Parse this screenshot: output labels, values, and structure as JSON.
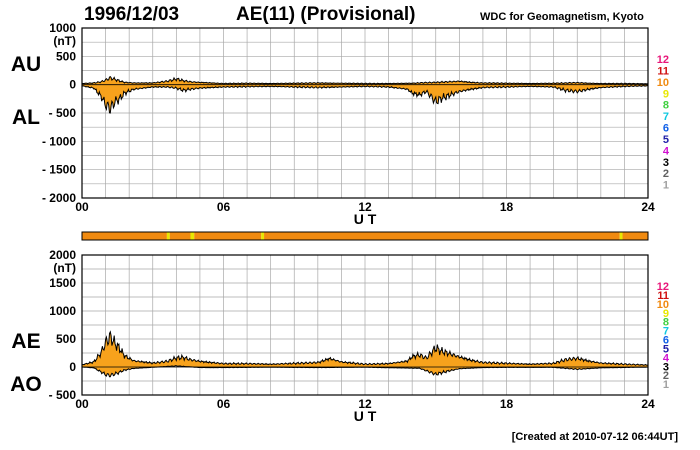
{
  "header": {
    "date": "1996/12/03",
    "title": "AE(11) (Provisional)",
    "credit": "WDC for Geomagnetism, Kyoto"
  },
  "footer": {
    "created": "[Created at 2010-07-12 06:44UT]"
  },
  "colors": {
    "fill": "#f7a21c",
    "grid": "#a8a8a8",
    "station_count_scale": [
      "#e8177a",
      "#d01010",
      "#f08a10",
      "#e8e800",
      "#40d040",
      "#10c8e0",
      "#1060e8",
      "#2020a8",
      "#d010d0",
      "#000000",
      "#606060",
      "#a0a0a0"
    ]
  },
  "station_count_labels": [
    "12",
    "11",
    "10",
    "9",
    "8",
    "7",
    "6",
    "5",
    "4",
    "3",
    "2",
    "1"
  ],
  "chart_data": [
    {
      "type": "area",
      "xlabel": "U T",
      "ylabel": "(nT)",
      "xlim": [
        0,
        24
      ],
      "ylim": [
        -2000,
        1000
      ],
      "yticks": [
        1000,
        500,
        0,
        -500,
        -1000,
        -1500,
        -2000
      ],
      "ytick_labels": [
        "1000",
        "500",
        "0",
        "- 500",
        "- 1000",
        "- 1500",
        "- 2000"
      ],
      "xticks": [
        0,
        6,
        12,
        18,
        24
      ],
      "xtick_labels": [
        "00",
        "06",
        "12",
        "18",
        "24"
      ],
      "grid": true,
      "series": [
        {
          "name": "AU",
          "x": [
            0,
            0.5,
            0.8,
            1.0,
            1.2,
            1.5,
            1.8,
            2.2,
            3,
            3.6,
            4,
            4.3,
            4.6,
            5,
            5.5,
            6,
            7,
            8,
            9,
            10,
            11,
            12,
            13,
            14,
            14.5,
            15,
            15.5,
            16,
            16.5,
            17,
            18,
            19,
            20,
            20.5,
            21,
            21.5,
            22,
            23,
            24
          ],
          "values": [
            20,
            30,
            50,
            80,
            120,
            80,
            40,
            30,
            30,
            60,
            100,
            70,
            50,
            40,
            30,
            20,
            25,
            20,
            25,
            30,
            25,
            20,
            20,
            25,
            35,
            40,
            50,
            60,
            40,
            30,
            25,
            20,
            25,
            30,
            35,
            25,
            20,
            20,
            15
          ]
        },
        {
          "name": "AL",
          "x": [
            0,
            0.5,
            0.8,
            1.0,
            1.2,
            1.4,
            1.6,
            1.8,
            2.2,
            3,
            3.6,
            4,
            4.3,
            4.6,
            5,
            5.5,
            6,
            7,
            8,
            9,
            10,
            11,
            12,
            13,
            13.8,
            14,
            14.3,
            14.6,
            15,
            15.2,
            15.5,
            16,
            16.5,
            17,
            18,
            19,
            20,
            20.5,
            21,
            21.5,
            22,
            23,
            24
          ],
          "values": [
            -20,
            -60,
            -200,
            -350,
            -420,
            -300,
            -250,
            -150,
            -80,
            -40,
            -40,
            -60,
            -100,
            -80,
            -60,
            -50,
            -40,
            -35,
            -30,
            -40,
            -50,
            -40,
            -30,
            -40,
            -80,
            -150,
            -180,
            -120,
            -300,
            -250,
            -200,
            -120,
            -80,
            -50,
            -40,
            -30,
            -40,
            -100,
            -120,
            -80,
            -50,
            -30,
            -20
          ]
        }
      ]
    },
    {
      "type": "area",
      "xlabel": "U T",
      "ylabel": "(nT)",
      "xlim": [
        0,
        24
      ],
      "ylim": [
        -500,
        2000
      ],
      "yticks": [
        2000,
        1500,
        1000,
        500,
        0,
        -500
      ],
      "ytick_labels": [
        "2000",
        "1500",
        "1000",
        "500",
        "0",
        "- 500"
      ],
      "xticks": [
        0,
        6,
        12,
        18,
        24
      ],
      "xtick_labels": [
        "00",
        "06",
        "12",
        "18",
        "24"
      ],
      "grid": true,
      "series": [
        {
          "name": "AE",
          "x": [
            0,
            0.5,
            0.8,
            1.0,
            1.2,
            1.4,
            1.6,
            1.8,
            2.2,
            3,
            3.6,
            4,
            4.3,
            4.6,
            5,
            5.5,
            6,
            7,
            8,
            9,
            10,
            10.5,
            11,
            12,
            13,
            13.8,
            14,
            14.3,
            14.6,
            15,
            15.2,
            15.5,
            16,
            16.5,
            17,
            18,
            19,
            20,
            20.5,
            21,
            21.5,
            22,
            23,
            24
          ],
          "values": [
            40,
            90,
            250,
            430,
            540,
            420,
            330,
            200,
            110,
            70,
            100,
            160,
            170,
            130,
            100,
            80,
            60,
            60,
            50,
            65,
            80,
            150,
            90,
            50,
            60,
            105,
            185,
            215,
            160,
            340,
            290,
            250,
            180,
            120,
            80,
            65,
            50,
            65,
            130,
            155,
            105,
            70,
            50,
            35
          ]
        },
        {
          "name": "AO",
          "x": [
            0,
            0.5,
            1.0,
            1.2,
            1.5,
            1.8,
            2.2,
            3,
            4,
            5,
            6,
            8,
            10,
            12,
            14,
            14.3,
            15,
            15.5,
            16,
            17,
            18,
            20,
            21,
            22,
            24
          ],
          "values": [
            0,
            -15,
            -135,
            -150,
            -110,
            -55,
            -25,
            -5,
            20,
            -10,
            -10,
            -5,
            -10,
            -5,
            -20,
            -20,
            -130,
            -75,
            -30,
            -10,
            -7,
            -7,
            -40,
            -15,
            -2
          ]
        }
      ]
    }
  ],
  "station_bar_segments": [
    {
      "x0": 0,
      "x1": 3.6,
      "count": "10"
    },
    {
      "x0": 3.6,
      "x1": 3.72,
      "count": "9"
    },
    {
      "x0": 3.72,
      "x1": 4.6,
      "count": "10"
    },
    {
      "x0": 4.6,
      "x1": 4.76,
      "count": "9"
    },
    {
      "x0": 4.76,
      "x1": 7.6,
      "count": "10"
    },
    {
      "x0": 7.6,
      "x1": 7.72,
      "count": "9"
    },
    {
      "x0": 7.72,
      "x1": 22.8,
      "count": "10"
    },
    {
      "x0": 22.8,
      "x1": 22.92,
      "count": "9"
    },
    {
      "x0": 22.92,
      "x1": 24,
      "count": "10"
    }
  ]
}
